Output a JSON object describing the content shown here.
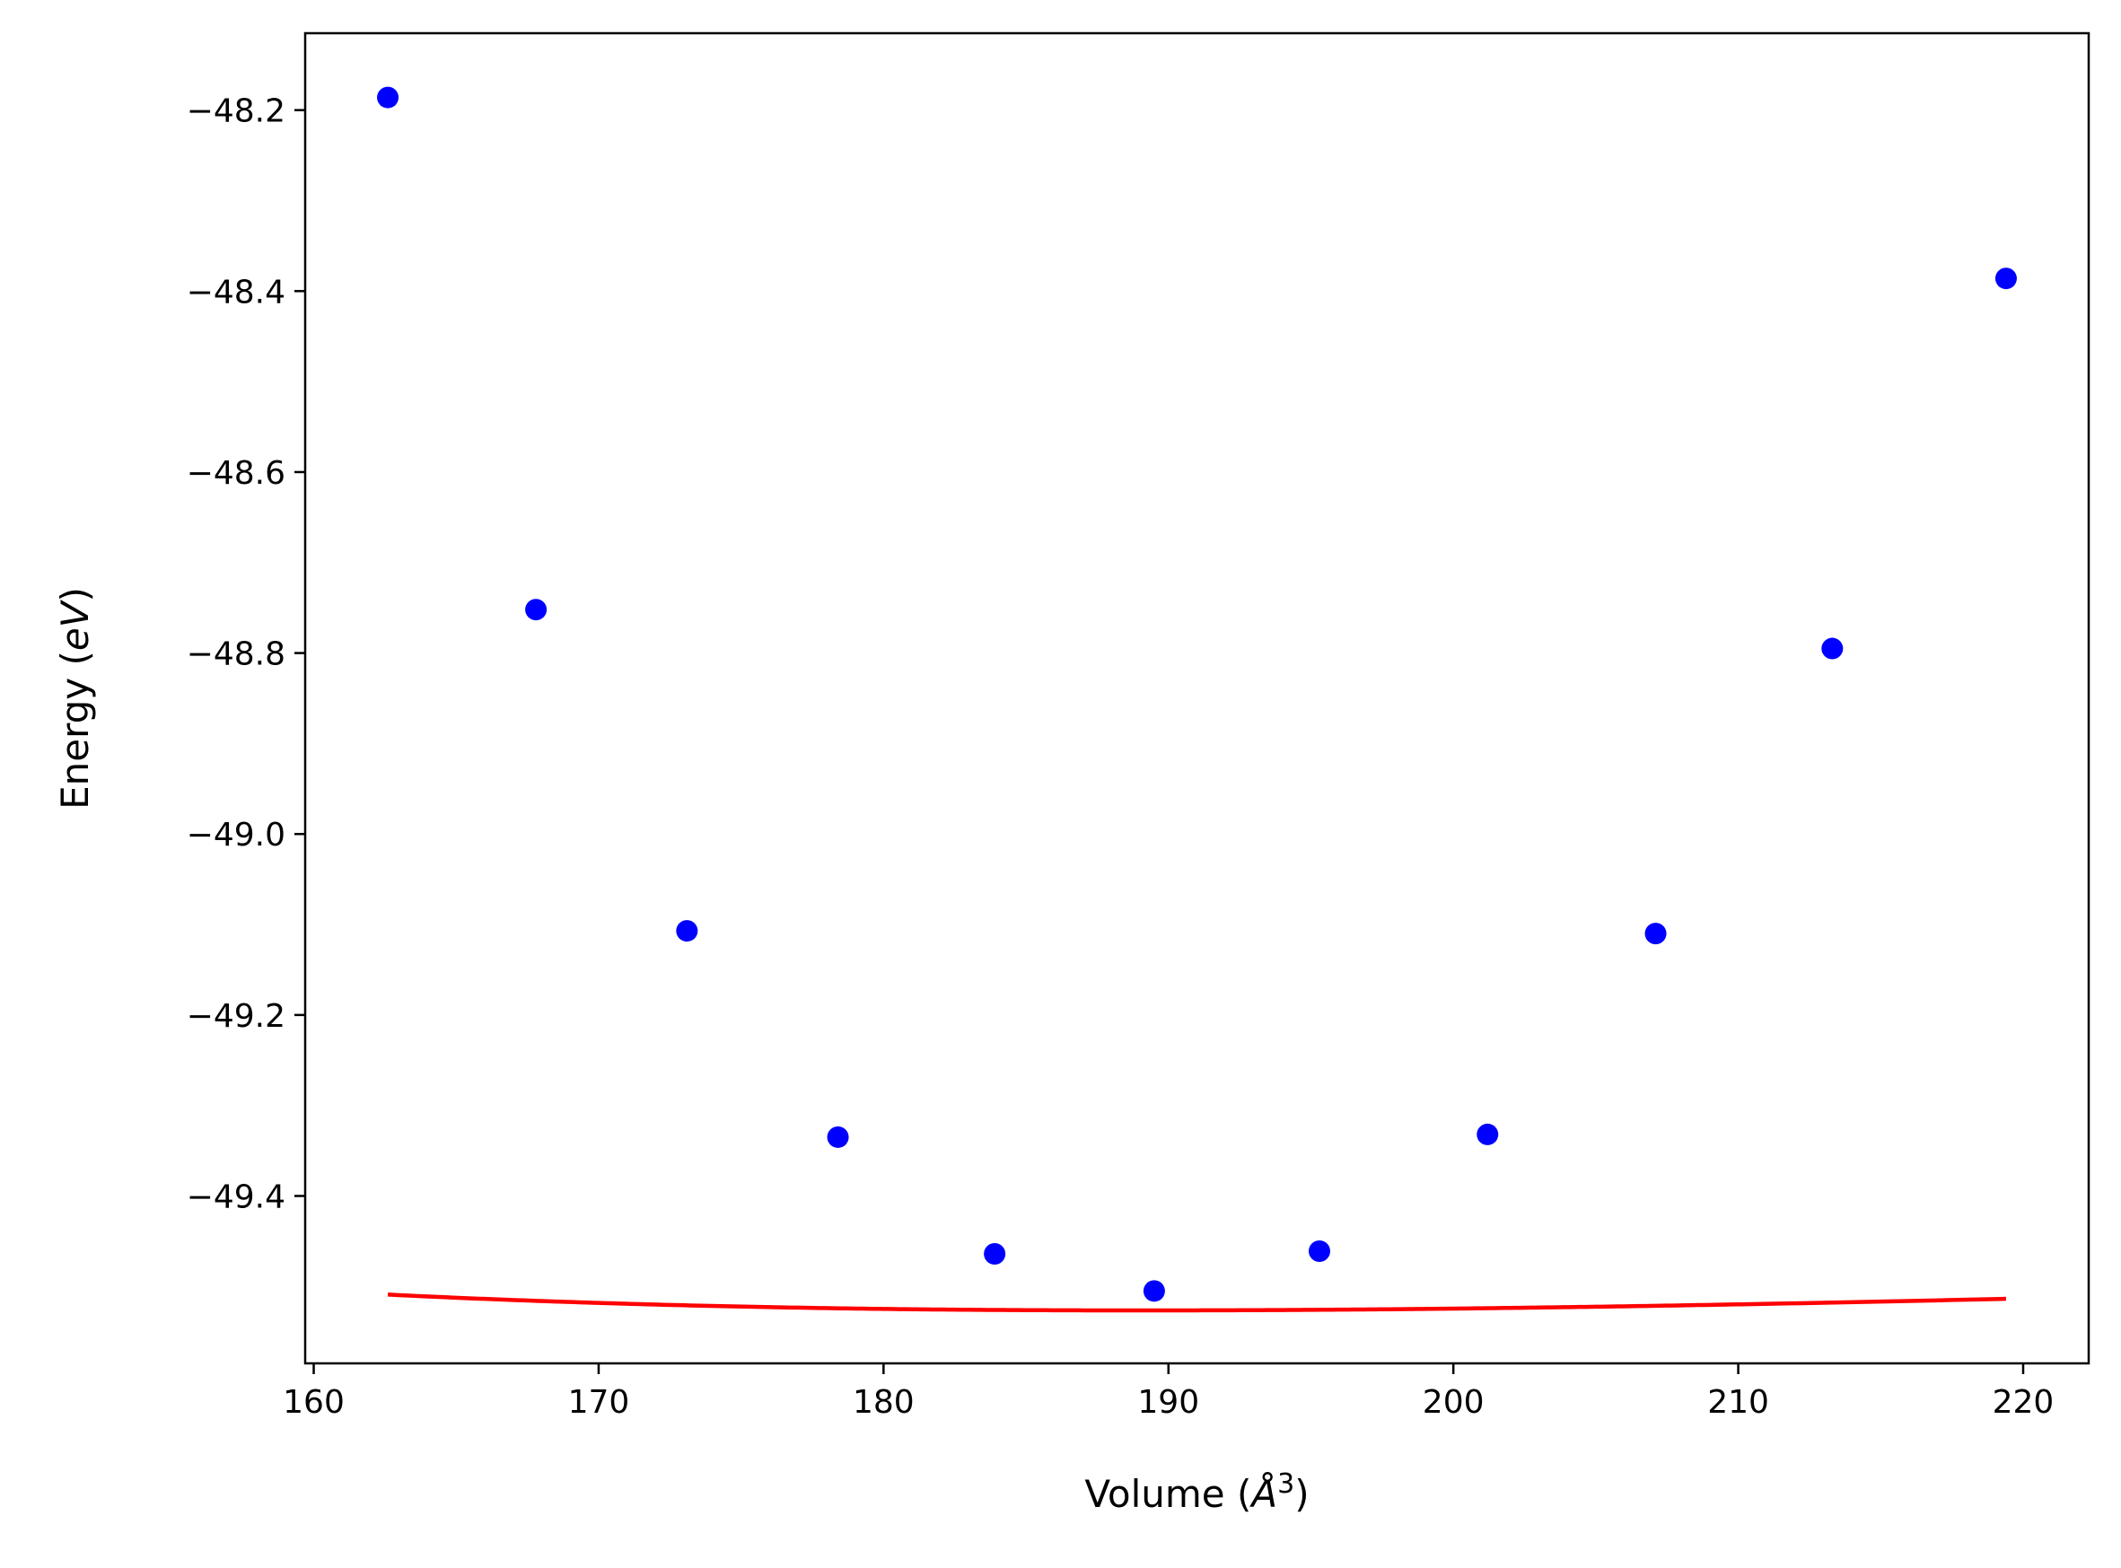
{
  "chart_data": {
    "type": "scatter",
    "xlabel": "Volume (Å³)",
    "xlabel_parts": {
      "main": "Volume (",
      "italic": "Å",
      "sup": "3",
      "close": ")"
    },
    "ylabel": "Energy (eV)",
    "ylabel_parts": {
      "main": "Energy (",
      "italic": "eV",
      "close": ")"
    },
    "xlim": [
      159.7,
      222.3
    ],
    "ylim": [
      -49.585,
      -48.115
    ],
    "xticks": [
      160,
      170,
      180,
      190,
      200,
      210,
      220
    ],
    "xtick_labels": [
      "160",
      "170",
      "180",
      "190",
      "200",
      "210",
      "220"
    ],
    "yticks": [
      -48.2,
      -48.4,
      -48.6,
      -48.8,
      -49.0,
      -49.2,
      -49.4
    ],
    "ytick_labels": [
      "−48.2",
      "−48.4",
      "−48.6",
      "−48.8",
      "−49.0",
      "−49.2",
      "−49.4"
    ],
    "grid": false,
    "series": [
      {
        "kind": "points",
        "color": "#0000ff",
        "x": [
          162.6,
          167.8,
          173.1,
          178.4,
          183.9,
          189.5,
          195.3,
          201.2,
          207.1,
          213.3,
          219.4
        ],
        "y": [
          -48.186,
          -48.752,
          -49.107,
          -49.335,
          -49.464,
          -49.505,
          -49.461,
          -49.332,
          -49.11,
          -48.795,
          -48.386
        ]
      },
      {
        "kind": "fit",
        "color": "#ff0000",
        "x_range": [
          162.6,
          219.4
        ],
        "V0": 189.0,
        "E0": -49.5265,
        "B0": 0.007057,
        "B0p": 4.9
      }
    ]
  }
}
